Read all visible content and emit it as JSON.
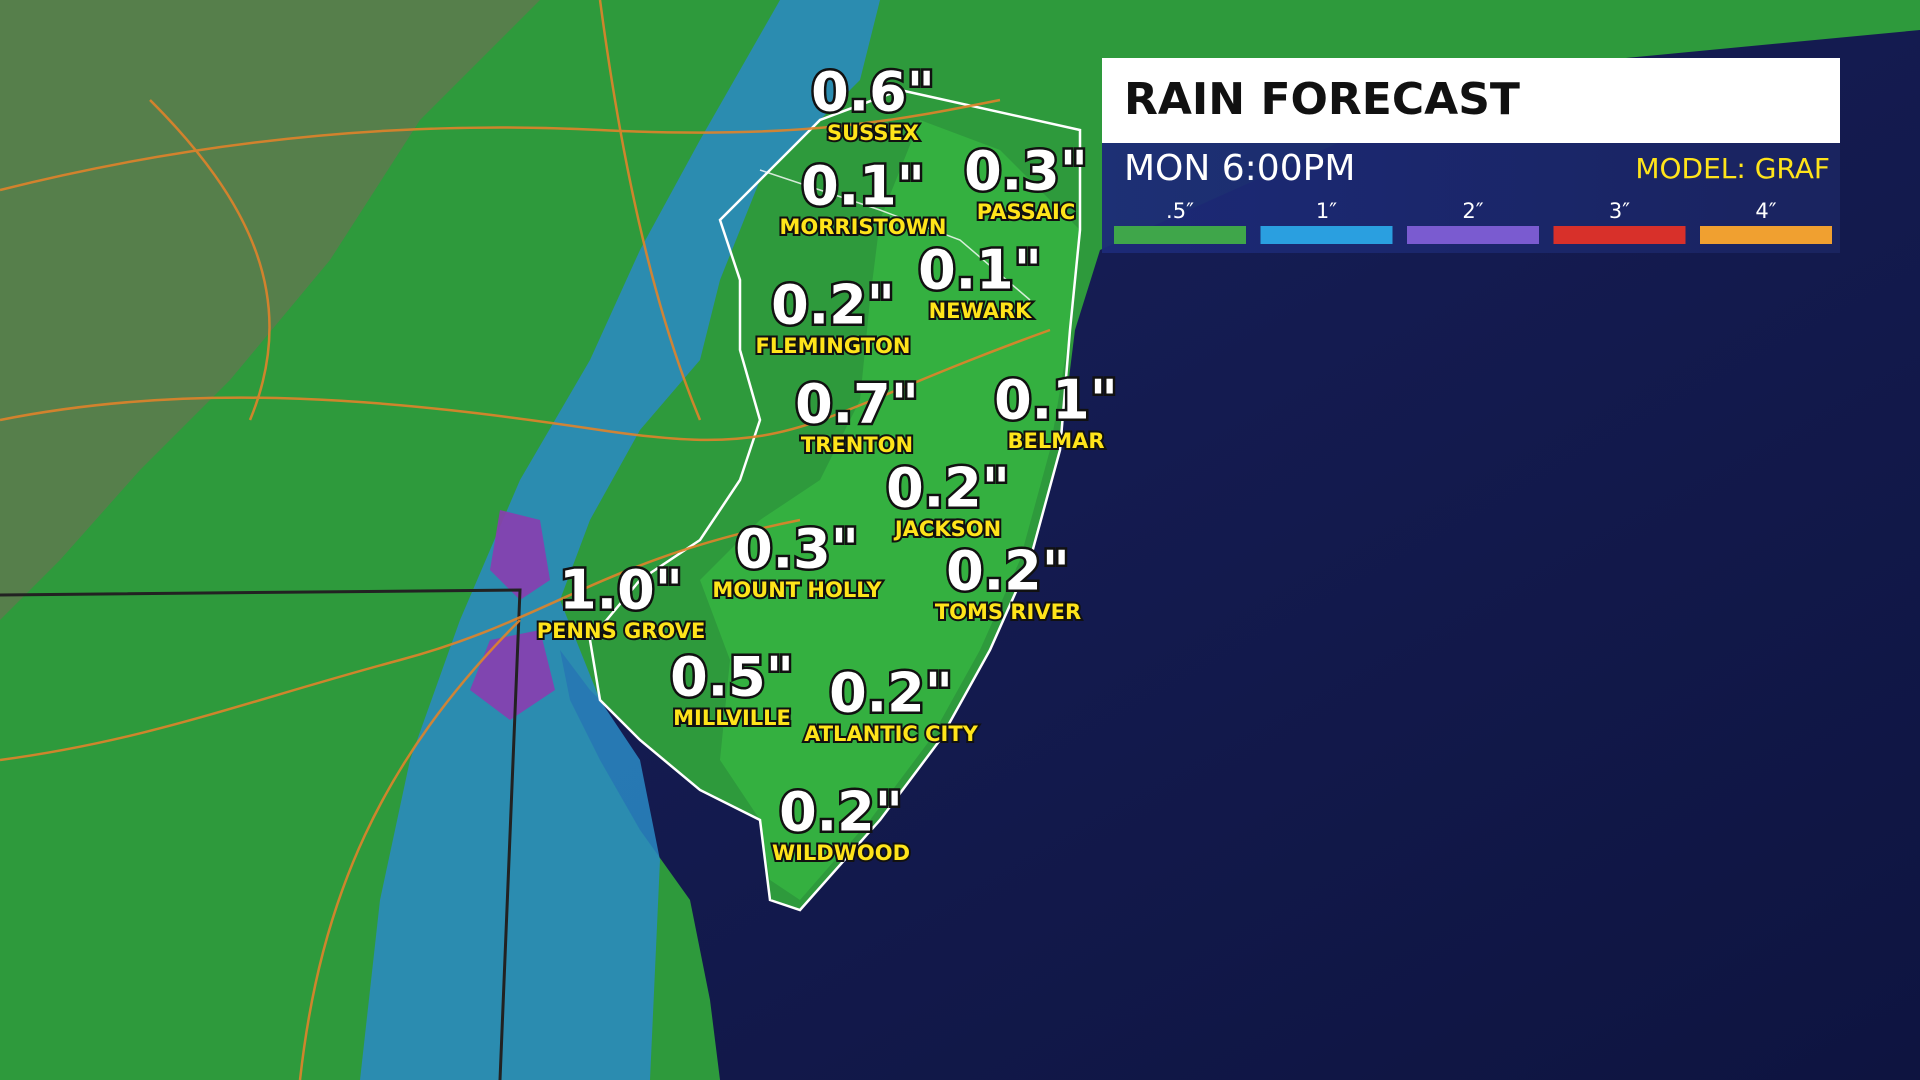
{
  "header": {
    "title": "RAIN FORECAST",
    "time": "MON 6:00PM",
    "model": "MODEL: GRAF"
  },
  "legend": [
    {
      "label": ".5″",
      "color": "#3fa64a"
    },
    {
      "label": "1″",
      "color": "#2a9fe0"
    },
    {
      "label": "2″",
      "color": "#7a5bd0"
    },
    {
      "label": "3″",
      "color": "#d8302a"
    },
    {
      "label": "4″",
      "color": "#f0a030"
    }
  ],
  "locations": [
    {
      "amount": "0.6\"",
      "name": "SUSSEX"
    },
    {
      "amount": "0.1\"",
      "name": "MORRISTOWN"
    },
    {
      "amount": "0.3\"",
      "name": "PASSAIC"
    },
    {
      "amount": "0.1\"",
      "name": "NEWARK"
    },
    {
      "amount": "0.2\"",
      "name": "FLEMINGTON"
    },
    {
      "amount": "0.7\"",
      "name": "TRENTON"
    },
    {
      "amount": "0.1\"",
      "name": "BELMAR"
    },
    {
      "amount": "0.2\"",
      "name": "JACKSON"
    },
    {
      "amount": "0.3\"",
      "name": "MOUNT HOLLY"
    },
    {
      "amount": "0.2\"",
      "name": "TOMS RIVER"
    },
    {
      "amount": "1.0\"",
      "name": "PENNS GROVE"
    },
    {
      "amount": "0.5\"",
      "name": "MILLVILLE"
    },
    {
      "amount": "0.2\"",
      "name": "ATLANTIC CITY"
    },
    {
      "amount": "0.2\"",
      "name": "WILDWOOD"
    }
  ]
}
